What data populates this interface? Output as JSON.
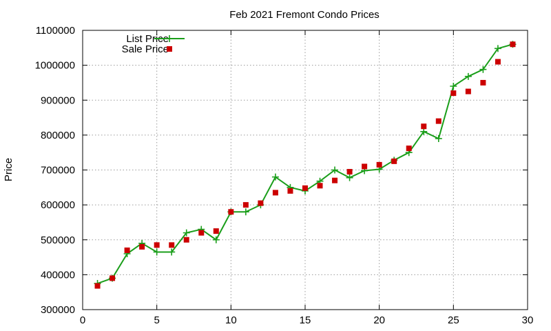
{
  "chart_data": {
    "type": "line",
    "title": "Feb 2021 Fremont Condo Prices",
    "xlabel": "",
    "ylabel": "Price",
    "xlim": [
      0,
      30
    ],
    "ylim": [
      300000,
      1100000
    ],
    "xticks": [
      0,
      5,
      10,
      15,
      20,
      25,
      30
    ],
    "yticks": [
      300000,
      400000,
      500000,
      600000,
      700000,
      800000,
      900000,
      1000000,
      1100000
    ],
    "grid": true,
    "legend_position": "top-left",
    "series": [
      {
        "name": "List Price",
        "style": "line+cross",
        "color": "#1a9e1a",
        "points": [
          [
            1,
            375000
          ],
          [
            2,
            390000
          ],
          [
            3,
            460000
          ],
          [
            4,
            490000
          ],
          [
            5,
            465000
          ],
          [
            6,
            465000
          ],
          [
            7,
            520000
          ],
          [
            8,
            530000
          ],
          [
            9,
            500000
          ],
          [
            10,
            580000
          ],
          [
            11,
            580000
          ],
          [
            12,
            600000
          ],
          [
            13,
            680000
          ],
          [
            14,
            650000
          ],
          [
            15,
            640000
          ],
          [
            16,
            668000
          ],
          [
            17,
            700000
          ],
          [
            18,
            678000
          ],
          [
            19,
            698000
          ],
          [
            20,
            702000
          ],
          [
            21,
            728000
          ],
          [
            22,
            750000
          ],
          [
            23,
            810000
          ],
          [
            24,
            790000
          ],
          [
            25,
            940000
          ],
          [
            26,
            968000
          ],
          [
            27,
            988000
          ],
          [
            28,
            1048000
          ],
          [
            29,
            1060000
          ]
        ]
      },
      {
        "name": "Sale Price",
        "style": "square",
        "color": "#cc0000",
        "points": [
          [
            1,
            368000
          ],
          [
            2,
            390000
          ],
          [
            3,
            470000
          ],
          [
            4,
            480000
          ],
          [
            5,
            485000
          ],
          [
            6,
            485000
          ],
          [
            7,
            500000
          ],
          [
            8,
            520000
          ],
          [
            9,
            525000
          ],
          [
            10,
            580000
          ],
          [
            11,
            600000
          ],
          [
            12,
            605000
          ],
          [
            13,
            635000
          ],
          [
            14,
            640000
          ],
          [
            15,
            648000
          ],
          [
            16,
            655000
          ],
          [
            17,
            670000
          ],
          [
            18,
            695000
          ],
          [
            19,
            710000
          ],
          [
            20,
            715000
          ],
          [
            21,
            725000
          ],
          [
            22,
            762000
          ],
          [
            23,
            825000
          ],
          [
            24,
            840000
          ],
          [
            25,
            920000
          ],
          [
            26,
            925000
          ],
          [
            27,
            950000
          ],
          [
            28,
            1010000
          ],
          [
            29,
            1060000
          ]
        ]
      }
    ]
  }
}
